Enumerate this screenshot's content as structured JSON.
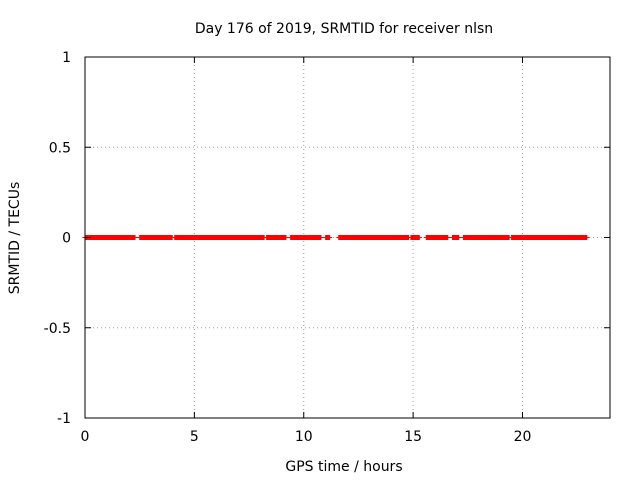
{
  "chart_data": {
    "type": "scatter",
    "title": "Day 176 of 2019, SRMTID for receiver nlsn",
    "xlabel": "GPS time / hours",
    "ylabel": "SRMTID / TECUs",
    "xlim": [
      0,
      24
    ],
    "ylim": [
      -1,
      1
    ],
    "x_ticks": [
      0,
      5,
      10,
      15,
      20
    ],
    "x_tick_labels": [
      "0",
      "5",
      "10",
      "15",
      "20"
    ],
    "y_ticks": [
      -1,
      -0.5,
      0,
      0.5,
      1
    ],
    "y_tick_labels": [
      "-1",
      "-0.5",
      "0",
      "0.5",
      "1"
    ],
    "grid": true,
    "marker": "plus",
    "color": "#ff0000",
    "series": [
      {
        "name": "SRMTID",
        "segments": [
          {
            "start": 0.0,
            "end": 2.3
          },
          {
            "start": 2.5,
            "end": 4.0
          },
          {
            "start": 4.1,
            "end": 8.2
          },
          {
            "start": 8.3,
            "end": 9.2
          },
          {
            "start": 9.4,
            "end": 10.8
          },
          {
            "start": 11.0,
            "end": 11.2
          },
          {
            "start": 11.6,
            "end": 14.8
          },
          {
            "start": 14.9,
            "end": 15.3
          },
          {
            "start": 15.6,
            "end": 16.6
          },
          {
            "start": 16.8,
            "end": 17.1
          },
          {
            "start": 17.3,
            "end": 19.4
          },
          {
            "start": 19.5,
            "end": 22.95
          }
        ],
        "sample_interval_hours": 0.0167,
        "value": 0
      }
    ]
  }
}
